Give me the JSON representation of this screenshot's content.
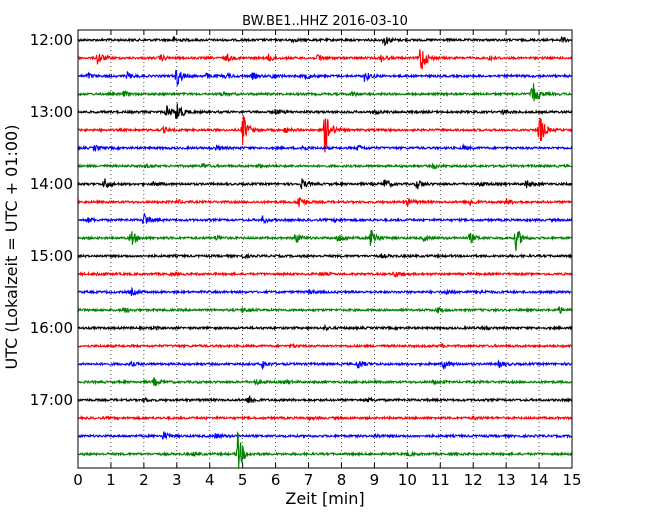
{
  "chart_data": {
    "type": "line",
    "title": "BW.BE1..HHZ 2016-03-10",
    "xlabel": "Zeit  [min]",
    "ylabel": "UTC (Lokalzeit = UTC + 01:00)",
    "xlim": [
      0,
      15
    ],
    "x_ticks": [
      "0",
      "1",
      "2",
      "3",
      "4",
      "5",
      "6",
      "7",
      "8",
      "9",
      "10",
      "11",
      "12",
      "13",
      "14",
      "15"
    ],
    "y_ticks": [
      "12:00",
      "13:00",
      "14:00",
      "15:00",
      "16:00",
      "17:00"
    ],
    "vertical_grid": true,
    "trace_colors": [
      "#000000",
      "#ff0000",
      "#0000ff",
      "#008000"
    ],
    "series": [
      {
        "row_start": "12:00",
        "events": [
          [
            9.3,
            0.7
          ],
          [
            14.7,
            0.35
          ],
          [
            2.9,
            0.25
          ],
          [
            6.5,
            0.2
          ]
        ]
      },
      {
        "row_start": "12:15",
        "events": [
          [
            0.6,
            0.9
          ],
          [
            10.4,
            2.0
          ],
          [
            2.5,
            0.35
          ],
          [
            4.5,
            0.45
          ],
          [
            5.8,
            0.5
          ],
          [
            7.3,
            0.5
          ],
          [
            9.2,
            0.4
          ],
          [
            12.5,
            0.3
          ]
        ]
      },
      {
        "row_start": "12:30",
        "events": [
          [
            3.0,
            1.2
          ],
          [
            8.7,
            0.6
          ],
          [
            0.3,
            0.3
          ],
          [
            1.5,
            0.35
          ],
          [
            3.9,
            0.3
          ],
          [
            4.5,
            0.3
          ],
          [
            5.3,
            0.35
          ],
          [
            5.9,
            0.3
          ],
          [
            6.9,
            0.3
          ]
        ]
      },
      {
        "row_start": "12:45",
        "events": [
          [
            13.8,
            1.4
          ],
          [
            1.4,
            0.3
          ],
          [
            4.3,
            0.2
          ],
          [
            8.3,
            0.2
          ]
        ]
      },
      {
        "row_start": "13:00",
        "events": [
          [
            3.0,
            1.3
          ],
          [
            2.7,
            0.8
          ],
          [
            6.0,
            0.3
          ],
          [
            9.0,
            0.25
          ],
          [
            12.9,
            0.25
          ]
        ]
      },
      {
        "row_start": "13:15",
        "events": [
          [
            5.0,
            1.9
          ],
          [
            7.5,
            2.6
          ],
          [
            14.0,
            2.1
          ],
          [
            2.6,
            0.3
          ],
          [
            6.3,
            0.3
          ]
        ]
      },
      {
        "row_start": "13:30",
        "events": [
          [
            0.5,
            0.3
          ],
          [
            4.2,
            0.3
          ],
          [
            6.8,
            0.3
          ],
          [
            8.5,
            0.3
          ],
          [
            11.7,
            0.25
          ]
        ]
      },
      {
        "row_start": "13:45",
        "events": [
          [
            3.8,
            0.25
          ],
          [
            10.8,
            0.25
          ],
          [
            2.0,
            0.2
          ],
          [
            5.5,
            0.2
          ]
        ]
      },
      {
        "row_start": "14:00",
        "events": [
          [
            0.8,
            0.7
          ],
          [
            6.8,
            0.6
          ],
          [
            9.3,
            0.6
          ],
          [
            10.3,
            0.6
          ],
          [
            13.6,
            0.5
          ],
          [
            2.3,
            0.25
          ],
          [
            12.2,
            0.25
          ]
        ]
      },
      {
        "row_start": "14:15",
        "events": [
          [
            6.7,
            0.9
          ],
          [
            10.0,
            0.4
          ],
          [
            11.9,
            0.45
          ],
          [
            13.0,
            0.35
          ],
          [
            3.0,
            0.25
          ]
        ]
      },
      {
        "row_start": "14:30",
        "events": [
          [
            2.0,
            0.9
          ],
          [
            5.6,
            0.4
          ],
          [
            0.3,
            0.25
          ],
          [
            7.8,
            0.2
          ]
        ]
      },
      {
        "row_start": "14:45",
        "events": [
          [
            1.6,
            1.0
          ],
          [
            8.9,
            1.3
          ],
          [
            13.3,
            1.4
          ],
          [
            6.6,
            0.7
          ],
          [
            7.9,
            0.6
          ],
          [
            11.9,
            0.6
          ],
          [
            4.2,
            0.3
          ],
          [
            10.5,
            0.3
          ]
        ]
      },
      {
        "row_start": "15:00",
        "events": [
          [
            9.2,
            0.2
          ],
          [
            5.0,
            0.15
          ]
        ]
      },
      {
        "row_start": "15:15",
        "events": [
          [
            9.6,
            0.4
          ],
          [
            0.6,
            0.2
          ],
          [
            2.8,
            0.2
          ],
          [
            7.4,
            0.2
          ]
        ]
      },
      {
        "row_start": "15:30",
        "events": [
          [
            1.6,
            0.4
          ],
          [
            11.2,
            0.35
          ],
          [
            7.0,
            0.2
          ],
          [
            12.2,
            0.25
          ]
        ]
      },
      {
        "row_start": "15:45",
        "events": [
          [
            1.4,
            0.3
          ],
          [
            5.0,
            0.25
          ],
          [
            10.9,
            0.35
          ],
          [
            14.6,
            0.4
          ]
        ]
      },
      {
        "row_start": "16:00",
        "events": [
          [
            2.3,
            0.2
          ],
          [
            7.5,
            0.2
          ],
          [
            12.3,
            0.2
          ]
        ]
      },
      {
        "row_start": "16:15",
        "events": [
          [
            6.5,
            0.15
          ],
          [
            11.0,
            0.15
          ]
        ]
      },
      {
        "row_start": "16:30",
        "events": [
          [
            5.6,
            0.5
          ],
          [
            8.5,
            0.6
          ],
          [
            11.1,
            0.5
          ],
          [
            12.8,
            0.4
          ],
          [
            1.6,
            0.25
          ]
        ]
      },
      {
        "row_start": "16:45",
        "events": [
          [
            2.3,
            0.5
          ],
          [
            5.4,
            0.3
          ],
          [
            6.3,
            0.3
          ],
          [
            10.8,
            0.25
          ]
        ]
      },
      {
        "row_start": "17:00",
        "events": [
          [
            5.2,
            0.6
          ],
          [
            2.0,
            0.2
          ],
          [
            8.8,
            0.2
          ]
        ]
      },
      {
        "row_start": "17:15",
        "events": [
          [
            7.0,
            0.15
          ],
          [
            12.0,
            0.15
          ]
        ]
      },
      {
        "row_start": "17:30",
        "events": [
          [
            2.6,
            0.45
          ],
          [
            4.2,
            0.3
          ],
          [
            9.0,
            0.2
          ]
        ]
      },
      {
        "row_start": "17:45",
        "events": [
          [
            4.85,
            2.4
          ],
          [
            3.5,
            0.2
          ],
          [
            10.0,
            0.2
          ]
        ]
      }
    ]
  }
}
